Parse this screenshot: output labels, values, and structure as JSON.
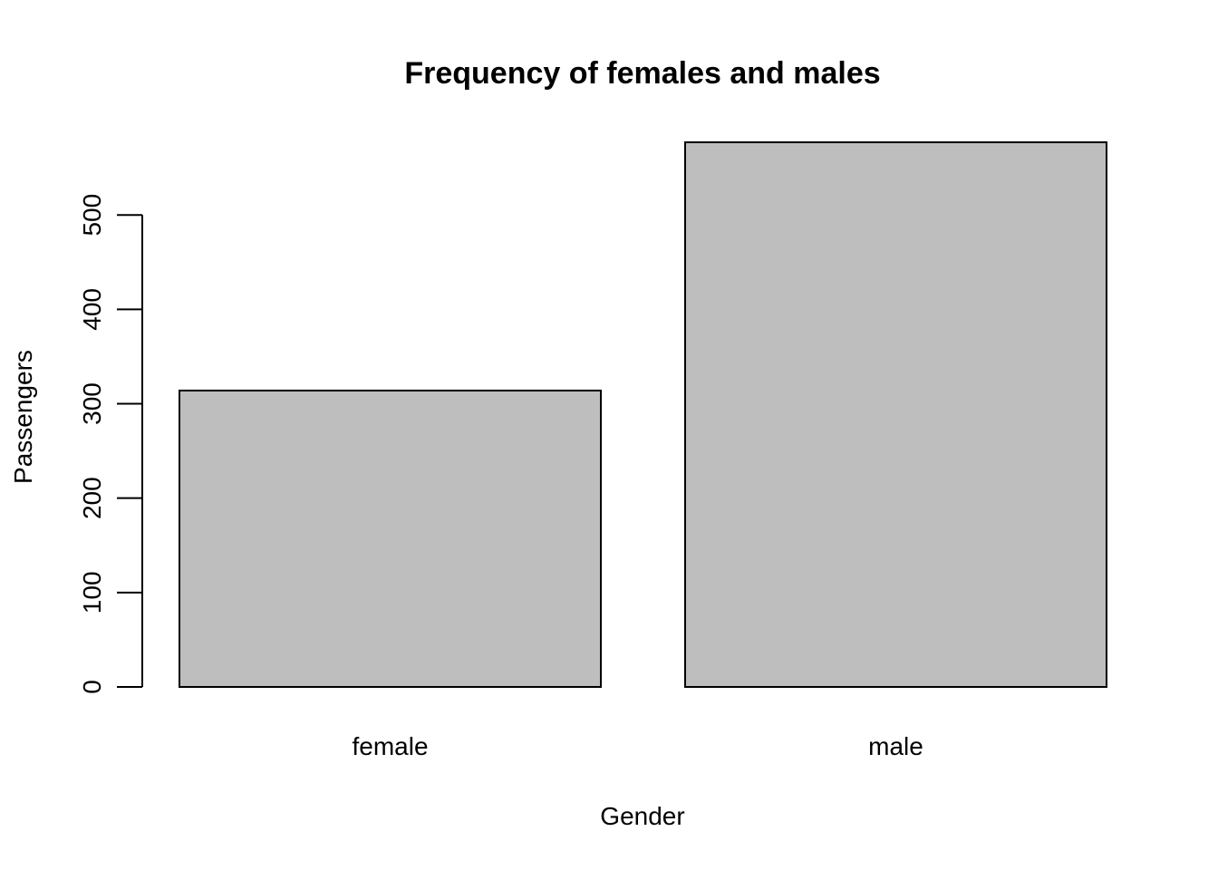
{
  "chart_data": {
    "type": "bar",
    "title": "Frequency of females and males",
    "xlabel": "Gender",
    "ylabel": "Passengers",
    "categories": [
      "female",
      "male"
    ],
    "values": [
      314,
      577
    ],
    "yticks": [
      "0",
      "100",
      "200",
      "300",
      "400",
      "500"
    ],
    "ylim": [
      0,
      577
    ],
    "grid": false,
    "legend": "none",
    "bar_color": "#bebebe",
    "border_color": "#000000"
  }
}
